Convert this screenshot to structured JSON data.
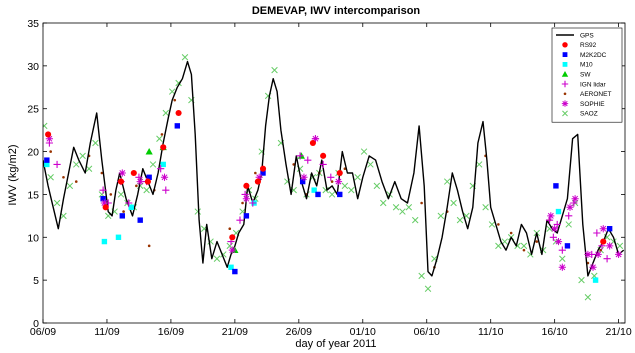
{
  "chart_data": {
    "type": "scatter",
    "title": "DEMEVAP, IWV intercomparison",
    "xlabel": "day of year 2011",
    "ylabel": "IWV (kg/m2)",
    "xlim": [
      249,
      294.5
    ],
    "ylim": [
      0,
      35
    ],
    "grid": false,
    "legend_position": "top-right",
    "x_ticks": [
      {
        "value": 249,
        "label": "06/09"
      },
      {
        "value": 254,
        "label": "11/09"
      },
      {
        "value": 259,
        "label": "16/09"
      },
      {
        "value": 264,
        "label": "21/09"
      },
      {
        "value": 269,
        "label": "26/09"
      },
      {
        "value": 274,
        "label": "01/10"
      },
      {
        "value": 279,
        "label": "06/10"
      },
      {
        "value": 284,
        "label": "11/10"
      },
      {
        "value": 289,
        "label": "16/10"
      },
      {
        "value": 294,
        "label": "21/10"
      }
    ],
    "y_ticks": [
      0,
      5,
      10,
      15,
      20,
      25,
      30,
      35
    ],
    "series": [
      {
        "name": "GPS",
        "marker": "line",
        "color": "#000000",
        "x": [
          249.0,
          249.4,
          249.8,
          250.2,
          250.6,
          251.0,
          251.4,
          251.8,
          252.3,
          252.7,
          253.2,
          253.6,
          254.1,
          254.4,
          254.7,
          255.0,
          255.5,
          256.0,
          256.4,
          256.8,
          257.2,
          257.6,
          258.0,
          258.4,
          258.8,
          259.1,
          259.5,
          259.9,
          260.3,
          260.6,
          260.9,
          261.2,
          261.5,
          261.8,
          262.2,
          262.6,
          263.0,
          263.4,
          263.7,
          264.0,
          264.3,
          264.7,
          265.0,
          265.4,
          265.8,
          266.1,
          266.4,
          266.7,
          267.0,
          267.3,
          267.6,
          268.0,
          268.4,
          268.8,
          269.2,
          269.6,
          270.0,
          270.4,
          270.8,
          271.2,
          271.6,
          272.0,
          272.4,
          272.8,
          273.2,
          273.6,
          274.0,
          274.5,
          275.0,
          275.5,
          276.0,
          276.5,
          277.0,
          277.5,
          278.0,
          278.4,
          278.8,
          279.1,
          279.4,
          279.8,
          280.2,
          280.6,
          281.0,
          281.4,
          281.8,
          282.2,
          282.6,
          283.0,
          283.4,
          283.7,
          284.0,
          284.4,
          284.8,
          285.2,
          285.6,
          286.0,
          286.4,
          286.8,
          287.2,
          287.6,
          288.0,
          288.4,
          288.8,
          289.2,
          289.6,
          290.0,
          290.4,
          290.8,
          291.2,
          291.6,
          292.0,
          292.4,
          292.8,
          293.2,
          293.6,
          294.0,
          294.4
        ],
        "y": [
          19.0,
          16.0,
          13.5,
          11.0,
          14.5,
          17.5,
          20.5,
          19.0,
          17.5,
          21.0,
          24.5,
          19.0,
          13.0,
          12.5,
          15.5,
          17.5,
          14.5,
          12.5,
          15.0,
          18.0,
          16.5,
          15.0,
          17.5,
          21.0,
          24.0,
          26.0,
          27.5,
          28.5,
          30.5,
          29.0,
          22.0,
          12.0,
          7.0,
          11.5,
          7.5,
          9.5,
          8.0,
          6.5,
          8.0,
          9.0,
          10.5,
          11.5,
          16.0,
          14.0,
          15.5,
          17.5,
          23.0,
          26.5,
          28.5,
          27.0,
          22.5,
          18.5,
          15.0,
          19.5,
          16.5,
          14.5,
          17.5,
          16.0,
          19.0,
          15.5,
          16.0,
          15.0,
          20.0,
          17.5,
          17.5,
          14.5,
          17.0,
          19.5,
          19.0,
          16.5,
          14.5,
          16.5,
          14.5,
          14.0,
          17.5,
          23.0,
          16.0,
          6.0,
          5.5,
          7.5,
          10.0,
          13.5,
          17.5,
          15.5,
          13.0,
          11.0,
          13.5,
          21.0,
          23.5,
          19.0,
          13.5,
          11.5,
          9.5,
          8.5,
          10.0,
          9.0,
          11.5,
          10.5,
          8.0,
          10.5,
          8.0,
          12.0,
          11.0,
          10.5,
          12.5,
          14.5,
          21.5,
          22.0,
          11.5,
          5.5,
          7.0,
          8.5,
          9.5,
          11.0,
          10.0,
          8.0,
          8.5
        ]
      },
      {
        "name": "RS92",
        "marker": "circle",
        "color": "#ff0000",
        "x": [
          249.4,
          253.9,
          255.1,
          256.1,
          257.2,
          258.4,
          259.6,
          263.8,
          264.9,
          265.8,
          266.2,
          270.1,
          270.9,
          272.2,
          292.8
        ],
        "y": [
          22.0,
          13.5,
          16.5,
          17.5,
          16.5,
          20.5,
          24.5,
          10.0,
          16.0,
          16.5,
          18.0,
          21.0,
          19.5,
          17.5,
          9.5
        ]
      },
      {
        "name": "M2K2DC",
        "marker": "square",
        "color": "#0000ff",
        "x": [
          249.3,
          253.7,
          255.2,
          256.6,
          257.3,
          259.5,
          264.0,
          264.9,
          266.2,
          269.3,
          270.5,
          272.2,
          289.1,
          290.0,
          293.3
        ],
        "y": [
          19.0,
          14.5,
          12.5,
          12.0,
          17.0,
          23.0,
          6.0,
          12.5,
          17.5,
          16.5,
          15.0,
          15.0,
          16.0,
          9.0,
          11.0
        ]
      },
      {
        "name": "M10",
        "marker": "square",
        "color": "#00ffff",
        "x": [
          249.3,
          253.8,
          254.9,
          255.9,
          258.4,
          263.7,
          265.5,
          270.2,
          289.3,
          292.2
        ],
        "y": [
          18.5,
          9.5,
          10.0,
          13.5,
          18.5,
          6.5,
          14.0,
          15.5,
          13.0,
          5.0
        ]
      },
      {
        "name": "SW",
        "marker": "triangle",
        "color": "#00cc00",
        "x": [
          257.3,
          258.4,
          264.0,
          269.2
        ],
        "y": [
          20.0,
          20.5,
          8.5,
          19.5
        ]
      },
      {
        "name": "IGN lidar",
        "marker": "plus",
        "color": "#cc00cc",
        "x": [
          249.5,
          250.1,
          253.7,
          254.1,
          255.1,
          255.7,
          256.5,
          257.1,
          258.2,
          258.6,
          263.7,
          264.4,
          264.8,
          265.4,
          269.1,
          269.7,
          270.3,
          270.9,
          271.5,
          288.6,
          288.9,
          289.2,
          289.6,
          290.1,
          290.5,
          291.9,
          292.3,
          292.7,
          293.1
        ],
        "y": [
          21.0,
          18.5,
          15.5,
          14.0,
          16.5,
          14.0,
          17.0,
          16.5,
          18.0,
          15.5,
          9.5,
          12.0,
          15.0,
          14.0,
          19.5,
          19.0,
          21.5,
          18.5,
          17.0,
          12.0,
          10.0,
          11.5,
          8.5,
          12.5,
          14.0,
          8.0,
          10.5,
          9.0,
          7.5
        ]
      },
      {
        "name": "AERONET",
        "marker": "dot",
        "color": "#993300",
        "x": [
          249.6,
          250.6,
          251.6,
          252.6,
          253.6,
          254.3,
          255.3,
          256.3,
          257.3,
          257.7,
          258.3,
          259.3,
          263.6,
          264.6,
          265.6,
          268.6,
          269.6,
          270.6,
          271.6,
          272.6,
          278.6,
          279.6,
          280.6,
          283.6,
          284.6,
          285.6,
          286.6,
          287.6,
          288.6,
          291.6,
          292.6
        ],
        "y": [
          20.0,
          17.0,
          16.5,
          19.5,
          17.5,
          15.0,
          13.0,
          16.0,
          9.0,
          15.5,
          22.0,
          26.0,
          11.0,
          14.0,
          17.5,
          18.5,
          15.0,
          17.5,
          16.5,
          18.0,
          14.0,
          6.5,
          13.0,
          19.5,
          11.5,
          10.5,
          8.5,
          9.5,
          12.0,
          7.0,
          8.5
        ]
      },
      {
        "name": "SOPHIE",
        "marker": "star",
        "color": "#cc00cc",
        "x": [
          249.5,
          253.8,
          255.2,
          256.6,
          258.5,
          263.8,
          264.9,
          265.9,
          269.4,
          270.3,
          272.1,
          288.7,
          289.0,
          289.3,
          289.6,
          290.2,
          290.6,
          291.6,
          292.0,
          292.4,
          292.8,
          293.3,
          294.0
        ],
        "y": [
          21.5,
          14.0,
          17.5,
          16.5,
          17.0,
          8.5,
          14.5,
          17.0,
          17.0,
          21.5,
          16.5,
          12.5,
          11.0,
          9.5,
          6.5,
          13.5,
          14.5,
          8.0,
          6.5,
          8.0,
          11.0,
          9.0,
          8.0
        ]
      },
      {
        "name": "SAOZ",
        "marker": "x",
        "color": "#66cc66",
        "x": [
          249.1,
          249.6,
          250.1,
          250.6,
          251.1,
          251.6,
          252.1,
          252.6,
          253.1,
          253.6,
          254.1,
          254.6,
          255.1,
          255.6,
          256.1,
          256.6,
          257.1,
          257.6,
          258.1,
          258.6,
          259.1,
          259.6,
          260.1,
          260.6,
          261.1,
          261.6,
          262.1,
          262.6,
          263.1,
          263.6,
          264.1,
          264.6,
          265.1,
          265.6,
          266.1,
          266.6,
          267.1,
          267.6,
          268.1,
          268.6,
          269.1,
          269.6,
          270.1,
          270.6,
          271.1,
          271.6,
          272.1,
          272.6,
          273.1,
          273.6,
          274.1,
          274.6,
          275.1,
          275.6,
          276.1,
          276.6,
          277.1,
          277.6,
          278.1,
          278.6,
          279.1,
          279.6,
          280.1,
          280.6,
          281.1,
          281.6,
          282.1,
          282.6,
          283.1,
          283.6,
          284.1,
          284.6,
          285.1,
          285.6,
          286.1,
          286.6,
          287.1,
          287.6,
          288.1,
          288.6,
          289.1,
          289.6,
          290.1,
          290.6,
          291.1,
          291.6,
          292.1,
          292.6,
          293.1,
          293.6,
          294.1
        ],
        "y": [
          23.0,
          17.0,
          14.0,
          12.5,
          16.0,
          18.5,
          19.5,
          18.0,
          21.0,
          15.0,
          12.5,
          13.0,
          15.0,
          14.0,
          13.5,
          16.0,
          15.5,
          18.5,
          21.5,
          24.5,
          27.0,
          28.0,
          31.0,
          26.0,
          13.0,
          11.0,
          9.5,
          7.5,
          8.0,
          9.0,
          10.5,
          13.0,
          15.5,
          14.5,
          20.0,
          26.5,
          29.5,
          21.0,
          16.5,
          15.5,
          18.0,
          15.0,
          17.0,
          17.5,
          15.5,
          15.0,
          17.5,
          16.0,
          15.5,
          17.0,
          20.0,
          18.5,
          16.0,
          14.0,
          15.0,
          13.5,
          13.0,
          13.5,
          12.0,
          5.5,
          4.0,
          7.5,
          12.5,
          16.5,
          14.0,
          12.0,
          12.5,
          16.0,
          18.5,
          13.5,
          11.5,
          9.0,
          9.5,
          10.0,
          9.0,
          9.0,
          8.0,
          10.5,
          8.5,
          11.0,
          9.5,
          7.5,
          11.5,
          14.0,
          5.0,
          3.0,
          5.5,
          8.5,
          10.0,
          9.5,
          9.0
        ]
      }
    ]
  }
}
